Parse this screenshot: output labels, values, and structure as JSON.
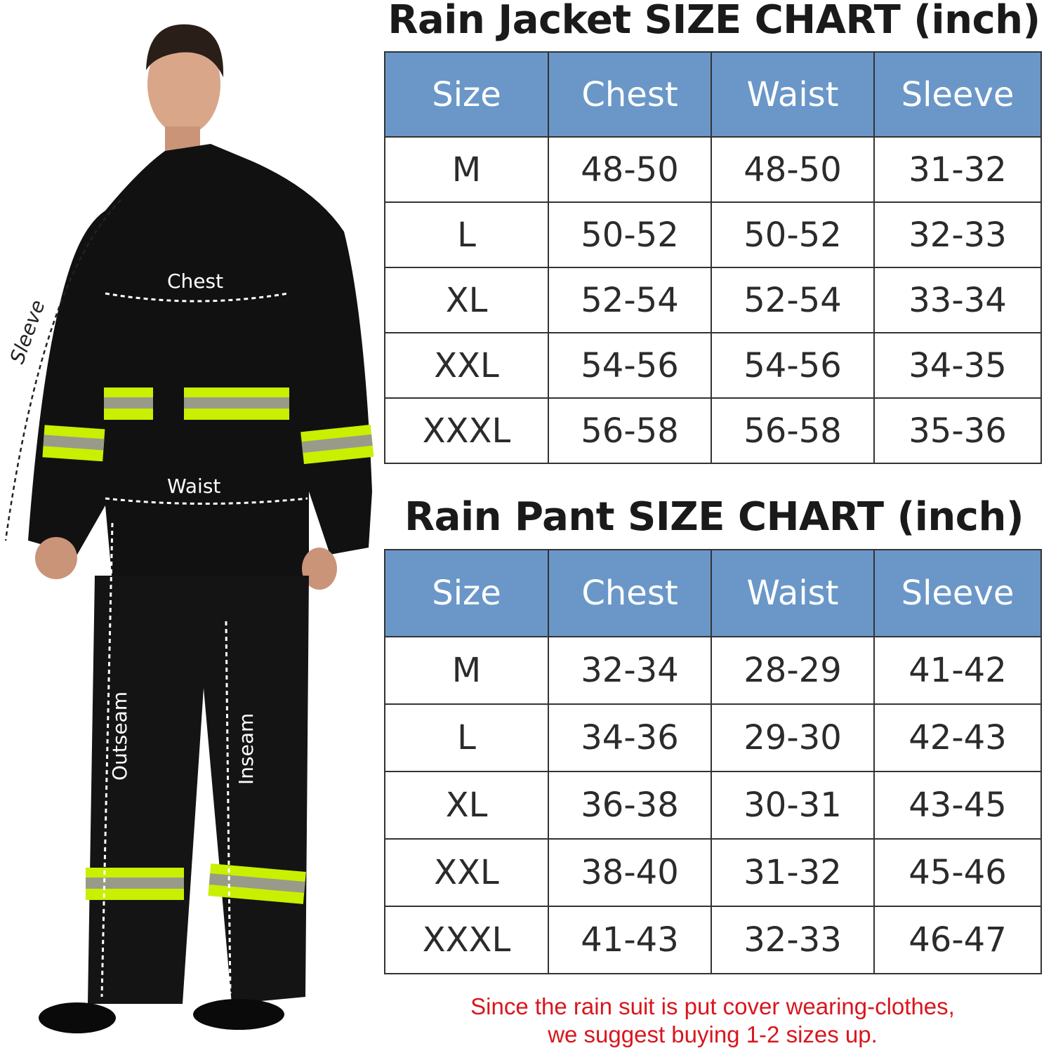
{
  "figure": {
    "labels": {
      "chest": "Chest",
      "waist": "Waist",
      "sleeve": "Sleeve",
      "outseam": "Outseam",
      "inseam": "Inseam"
    },
    "colors": {
      "suit": "#111111",
      "reflective": "#c8f000",
      "reflective_center": "#9a9a8a"
    }
  },
  "jacket": {
    "title": "Rain Jacket SIZE CHART (inch)",
    "headers": [
      "Size",
      "Chest",
      "Waist",
      "Sleeve"
    ],
    "rows": [
      [
        "M",
        "48-50",
        "48-50",
        "31-32"
      ],
      [
        "L",
        "50-52",
        "50-52",
        "32-33"
      ],
      [
        "XL",
        "52-54",
        "52-54",
        "33-34"
      ],
      [
        "XXL",
        "54-56",
        "54-56",
        "34-35"
      ],
      [
        "XXXL",
        "56-58",
        "56-58",
        "35-36"
      ]
    ]
  },
  "pant": {
    "title": "Rain Pant SIZE CHART (inch)",
    "headers": [
      "Size",
      "Chest",
      "Waist",
      "Sleeve"
    ],
    "rows": [
      [
        "M",
        "32-34",
        "28-29",
        "41-42"
      ],
      [
        "L",
        "34-36",
        "29-30",
        "42-43"
      ],
      [
        "XL",
        "36-38",
        "30-31",
        "43-45"
      ],
      [
        "XXL",
        "38-40",
        "31-32",
        "45-46"
      ],
      [
        "XXXL",
        "41-43",
        "32-33",
        "46-47"
      ]
    ]
  },
  "note": {
    "line1": "Since the rain suit is put cover wearing-clothes,",
    "line2": "we suggest buying 1-2 sizes up."
  },
  "colors": {
    "header_bg": "#6a97c8",
    "note": "#d9161d"
  }
}
